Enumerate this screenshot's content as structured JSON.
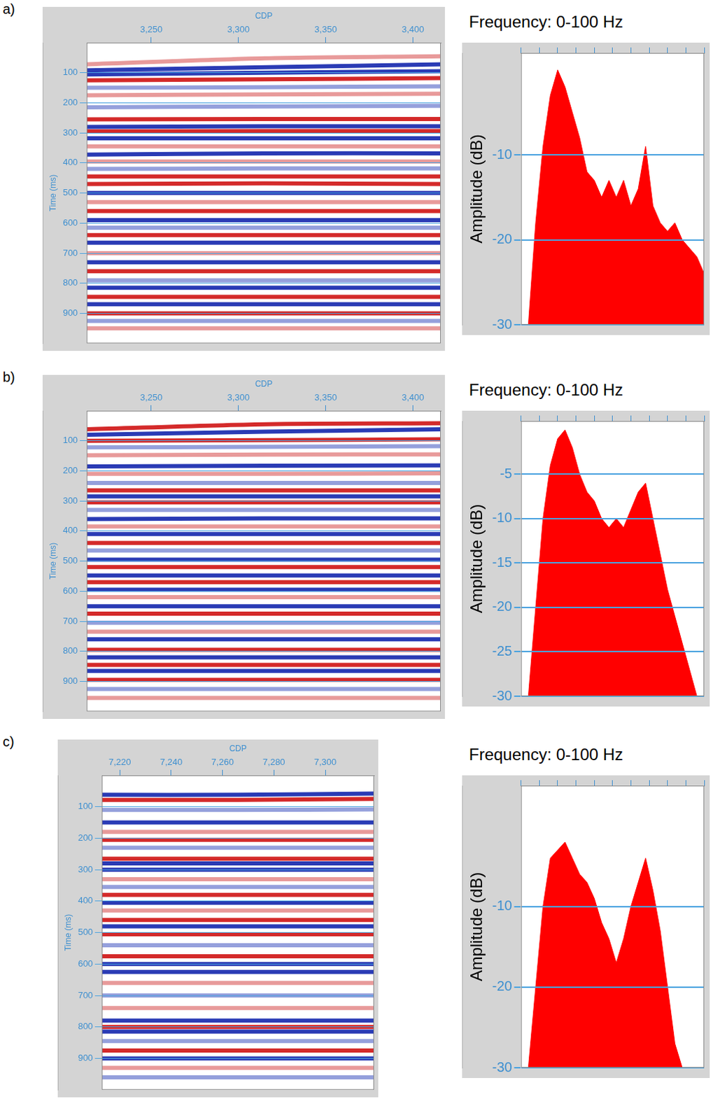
{
  "chart_data": [
    {
      "panel": "a)",
      "type": "line",
      "x_label": "CDP",
      "y_label": "Time (ms)",
      "grid": "y",
      "xlim": [
        3213,
        3416
      ],
      "xticks": [
        3250,
        3300,
        3350,
        3400
      ],
      "ylim": [
        0,
        1000
      ],
      "yticks": [
        100,
        200,
        300,
        400,
        500,
        600,
        700,
        800,
        900
      ],
      "x": [
        3213,
        3315,
        3416
      ],
      "series": [
        {
          "color": "#e89a9a",
          "values": [
            72,
            52,
            45
          ]
        },
        {
          "color": "#2a3bb5",
          "values": [
            92,
            82,
            72
          ]
        },
        {
          "color": "#2a3bb5",
          "values": [
            106,
            100,
            95
          ]
        },
        {
          "color": "#d42a2a",
          "values": [
            125,
            122,
            118
          ]
        },
        {
          "color": "#95a0dc",
          "values": [
            150,
            148,
            145
          ]
        },
        {
          "color": "#e89a9a",
          "values": [
            175,
            172,
            170
          ]
        },
        {
          "color": "#95a0dc",
          "values": [
            215,
            212,
            210
          ]
        },
        {
          "color": "#d42a2a",
          "values": [
            255,
            254,
            254
          ]
        },
        {
          "color": "#2a3bb5",
          "values": [
            280,
            278,
            278
          ]
        },
        {
          "color": "#d42a2a",
          "values": [
            295,
            294,
            294
          ]
        },
        {
          "color": "#2a3bb5",
          "values": [
            318,
            318,
            318
          ]
        },
        {
          "color": "#e89a9a",
          "values": [
            345,
            345,
            345
          ]
        },
        {
          "color": "#2a3bb5",
          "values": [
            372,
            368,
            368
          ]
        },
        {
          "color": "#e89a9a",
          "values": [
            395,
            395,
            395
          ]
        },
        {
          "color": "#95a0dc",
          "values": [
            420,
            418,
            418
          ]
        },
        {
          "color": "#d42a2a",
          "values": [
            445,
            445,
            445
          ]
        },
        {
          "color": "#d42a2a",
          "values": [
            470,
            468,
            470
          ]
        },
        {
          "color": "#2a3bb5",
          "values": [
            500,
            500,
            500
          ]
        },
        {
          "color": "#e89a9a",
          "values": [
            530,
            530,
            530
          ]
        },
        {
          "color": "#d42a2a",
          "values": [
            560,
            560,
            560
          ]
        },
        {
          "color": "#2a3bb5",
          "values": [
            590,
            590,
            590
          ]
        },
        {
          "color": "#95a0dc",
          "values": [
            615,
            615,
            615
          ]
        },
        {
          "color": "#d42a2a",
          "values": [
            640,
            640,
            640
          ]
        },
        {
          "color": "#2a3bb5",
          "values": [
            665,
            665,
            665
          ]
        },
        {
          "color": "#e89a9a",
          "values": [
            700,
            700,
            700
          ]
        },
        {
          "color": "#2a3bb5",
          "values": [
            730,
            730,
            730
          ]
        },
        {
          "color": "#d42a2a",
          "values": [
            760,
            760,
            760
          ]
        },
        {
          "color": "#95a0dc",
          "values": [
            790,
            790,
            790
          ]
        },
        {
          "color": "#2a3bb5",
          "values": [
            815,
            815,
            815
          ]
        },
        {
          "color": "#d42a2a",
          "values": [
            845,
            845,
            845
          ]
        },
        {
          "color": "#2a3bb5",
          "values": [
            870,
            870,
            870
          ]
        },
        {
          "color": "#d42a2a",
          "values": [
            900,
            900,
            900
          ]
        },
        {
          "color": "#95a0dc",
          "values": [
            925,
            925,
            925
          ]
        },
        {
          "color": "#e89a9a",
          "values": [
            950,
            950,
            950
          ]
        }
      ]
    },
    {
      "type": "area",
      "title": "Frequency: 0-100 Hz",
      "y_label": "Amplitude (dB)",
      "grid": "y",
      "tick_labels": "y",
      "color": "#ff0000",
      "xlim": [
        0,
        100
      ],
      "xticks": [
        0,
        10,
        20,
        30,
        40,
        50,
        60,
        70,
        80,
        90,
        100
      ],
      "ylim": [
        -30,
        2
      ],
      "yticks": [
        -10,
        -20,
        -30
      ],
      "x": [
        4,
        8,
        12,
        16,
        20,
        24,
        28,
        32,
        36,
        40,
        44,
        48,
        52,
        56,
        60,
        64,
        68,
        72,
        76,
        80,
        84,
        88,
        92,
        96,
        100
      ],
      "values": [
        -30,
        -18,
        -9,
        -3,
        0,
        -2,
        -5,
        -8,
        -12,
        -13,
        -15,
        -13,
        -15,
        -13,
        -16,
        -14,
        -9,
        -16,
        -18,
        -19,
        -18,
        -20,
        -21,
        -22,
        -24
      ]
    },
    {
      "panel": "b)",
      "type": "line",
      "x_label": "CDP",
      "y_label": "Time (ms)",
      "grid": "y",
      "xlim": [
        3213,
        3416
      ],
      "xticks": [
        3250,
        3300,
        3350,
        3400
      ],
      "ylim": [
        0,
        1000
      ],
      "yticks": [
        100,
        200,
        300,
        400,
        500,
        600,
        700,
        800,
        900
      ],
      "x": [
        3213,
        3315,
        3416
      ],
      "series": [
        {
          "color": "#d42a2a",
          "values": [
            62,
            45,
            42
          ]
        },
        {
          "color": "#2a3bb5",
          "values": [
            80,
            70,
            62
          ]
        },
        {
          "color": "#d42a2a",
          "values": [
            100,
            98,
            95
          ]
        },
        {
          "color": "#95a0dc",
          "values": [
            122,
            120,
            118
          ]
        },
        {
          "color": "#e89a9a",
          "values": [
            148,
            146,
            145
          ]
        },
        {
          "color": "#2a3bb5",
          "values": [
            185,
            183,
            182
          ]
        },
        {
          "color": "#e89a9a",
          "values": [
            210,
            210,
            208
          ]
        },
        {
          "color": "#95a0dc",
          "values": [
            240,
            240,
            240
          ]
        },
        {
          "color": "#d42a2a",
          "values": [
            265,
            265,
            265
          ]
        },
        {
          "color": "#2a3bb5",
          "values": [
            285,
            285,
            285
          ]
        },
        {
          "color": "#d42a2a",
          "values": [
            305,
            305,
            305
          ]
        },
        {
          "color": "#95a0dc",
          "values": [
            330,
            330,
            330
          ]
        },
        {
          "color": "#2a3bb5",
          "values": [
            360,
            358,
            358
          ]
        },
        {
          "color": "#e89a9a",
          "values": [
            385,
            385,
            385
          ]
        },
        {
          "color": "#2a3bb5",
          "values": [
            410,
            410,
            410
          ]
        },
        {
          "color": "#d42a2a",
          "values": [
            440,
            440,
            440
          ]
        },
        {
          "color": "#95a0dc",
          "values": [
            465,
            465,
            465
          ]
        },
        {
          "color": "#2a3bb5",
          "values": [
            495,
            495,
            495
          ]
        },
        {
          "color": "#d42a2a",
          "values": [
            520,
            520,
            520
          ]
        },
        {
          "color": "#2a3bb5",
          "values": [
            548,
            548,
            548
          ]
        },
        {
          "color": "#d42a2a",
          "values": [
            570,
            570,
            570
          ]
        },
        {
          "color": "#2a3bb5",
          "values": [
            595,
            595,
            595
          ]
        },
        {
          "color": "#e89a9a",
          "values": [
            620,
            620,
            620
          ]
        },
        {
          "color": "#2a3bb5",
          "values": [
            650,
            650,
            650
          ]
        },
        {
          "color": "#d42a2a",
          "values": [
            675,
            675,
            675
          ]
        },
        {
          "color": "#95a0dc",
          "values": [
            705,
            705,
            705
          ]
        },
        {
          "color": "#e89a9a",
          "values": [
            735,
            735,
            735
          ]
        },
        {
          "color": "#2a3bb5",
          "values": [
            760,
            760,
            760
          ]
        },
        {
          "color": "#d42a2a",
          "values": [
            795,
            795,
            795
          ]
        },
        {
          "color": "#2a3bb5",
          "values": [
            820,
            820,
            820
          ]
        },
        {
          "color": "#d42a2a",
          "values": [
            845,
            845,
            845
          ]
        },
        {
          "color": "#2a3bb5",
          "values": [
            865,
            865,
            865
          ]
        },
        {
          "color": "#d42a2a",
          "values": [
            895,
            895,
            895
          ]
        },
        {
          "color": "#95a0dc",
          "values": [
            925,
            925,
            925
          ]
        },
        {
          "color": "#e89a9a",
          "values": [
            955,
            955,
            955
          ]
        }
      ]
    },
    {
      "type": "area",
      "title": "Frequency: 0-100 Hz",
      "y_label": "Amplitude (dB)",
      "grid": "y",
      "tick_labels": "y",
      "color": "#ff0000",
      "xlim": [
        0,
        100
      ],
      "xticks": [
        0,
        10,
        20,
        30,
        40,
        50,
        60,
        70,
        80,
        90,
        100
      ],
      "ylim": [
        -30,
        1
      ],
      "yticks": [
        -5,
        -10,
        -15,
        -20,
        -25,
        -30
      ],
      "x": [
        4,
        8,
        12,
        16,
        20,
        24,
        28,
        32,
        36,
        40,
        44,
        48,
        52,
        56,
        60,
        64,
        68,
        72,
        76,
        80,
        84,
        88,
        92,
        96,
        100
      ],
      "values": [
        -30,
        -20,
        -10,
        -4,
        -1,
        0,
        -2,
        -5,
        -7,
        -8,
        -10,
        -11,
        -10,
        -11,
        -9,
        -7,
        -6,
        -10,
        -14,
        -18,
        -21,
        -24,
        -27,
        -30,
        -30
      ]
    },
    {
      "panel": "c)",
      "type": "line",
      "x_label": "CDP",
      "y_label": "Time (ms)",
      "grid": "y",
      "xlim": [
        7213,
        7319
      ],
      "xticks": [
        7220,
        7240,
        7260,
        7280,
        7300
      ],
      "ylim": [
        0,
        1000
      ],
      "yticks": [
        100,
        200,
        300,
        400,
        500,
        600,
        700,
        800,
        900
      ],
      "x": [
        7213,
        7266,
        7319
      ],
      "series": [
        {
          "color": "#2a3bb5",
          "values": [
            62,
            62,
            58
          ]
        },
        {
          "color": "#d42a2a",
          "values": [
            78,
            78,
            75
          ]
        },
        {
          "color": "#95a0dc",
          "values": [
            110,
            110,
            108
          ]
        },
        {
          "color": "#2a3bb5",
          "values": [
            150,
            150,
            150
          ]
        },
        {
          "color": "#e89a9a",
          "values": [
            180,
            180,
            180
          ]
        },
        {
          "color": "#d42a2a",
          "values": [
            205,
            205,
            205
          ]
        },
        {
          "color": "#95a0dc",
          "values": [
            230,
            230,
            230
          ]
        },
        {
          "color": "#d42a2a",
          "values": [
            265,
            265,
            265
          ]
        },
        {
          "color": "#2a3bb5",
          "values": [
            280,
            280,
            280
          ]
        },
        {
          "color": "#2a3bb5",
          "values": [
            300,
            300,
            300
          ]
        },
        {
          "color": "#e89a9a",
          "values": [
            330,
            330,
            330
          ]
        },
        {
          "color": "#95a0dc",
          "values": [
            355,
            355,
            355
          ]
        },
        {
          "color": "#d42a2a",
          "values": [
            380,
            380,
            380
          ]
        },
        {
          "color": "#2a3bb5",
          "values": [
            405,
            405,
            405
          ]
        },
        {
          "color": "#e89a9a",
          "values": [
            430,
            430,
            430
          ]
        },
        {
          "color": "#d42a2a",
          "values": [
            460,
            460,
            460
          ]
        },
        {
          "color": "#2a3bb5",
          "values": [
            480,
            480,
            480
          ]
        },
        {
          "color": "#d42a2a",
          "values": [
            505,
            505,
            505
          ]
        },
        {
          "color": "#95a0dc",
          "values": [
            540,
            540,
            540
          ]
        },
        {
          "color": "#d42a2a",
          "values": [
            575,
            575,
            575
          ]
        },
        {
          "color": "#2a3bb5",
          "values": [
            600,
            600,
            600
          ]
        },
        {
          "color": "#2a3bb5",
          "values": [
            625,
            625,
            625
          ]
        },
        {
          "color": "#e89a9a",
          "values": [
            660,
            660,
            660
          ]
        },
        {
          "color": "#95a0dc",
          "values": [
            700,
            700,
            700
          ]
        },
        {
          "color": "#e89a9a",
          "values": [
            740,
            740,
            740
          ]
        },
        {
          "color": "#2a3bb5",
          "values": [
            780,
            780,
            780
          ]
        },
        {
          "color": "#d42a2a",
          "values": [
            800,
            800,
            800
          ]
        },
        {
          "color": "#2a3bb5",
          "values": [
            815,
            815,
            815
          ]
        },
        {
          "color": "#95a0dc",
          "values": [
            845,
            845,
            845
          ]
        },
        {
          "color": "#d42a2a",
          "values": [
            875,
            875,
            875
          ]
        },
        {
          "color": "#2a3bb5",
          "values": [
            900,
            900,
            900
          ]
        },
        {
          "color": "#e89a9a",
          "values": [
            930,
            930,
            930
          ]
        },
        {
          "color": "#95a0dc",
          "values": [
            960,
            960,
            960
          ]
        }
      ]
    },
    {
      "type": "area",
      "title": "Frequency: 0-100 Hz",
      "y_label": "Amplitude (dB)",
      "grid": "y",
      "tick_labels": "y",
      "color": "#ff0000",
      "xlim": [
        0,
        100
      ],
      "xticks": [
        0,
        10,
        20,
        30,
        40,
        50,
        60,
        70,
        80,
        90,
        100
      ],
      "ylim": [
        -30,
        5
      ],
      "yticks": [
        -10,
        -20,
        -30
      ],
      "x": [
        4,
        8,
        12,
        16,
        20,
        24,
        28,
        32,
        36,
        40,
        44,
        48,
        52,
        56,
        60,
        64,
        68,
        72,
        76,
        80,
        84,
        88,
        92,
        96,
        100
      ],
      "values": [
        -30,
        -20,
        -10,
        -4,
        -3,
        -2,
        -4,
        -6,
        -7,
        -9,
        -12,
        -14,
        -17,
        -14,
        -10,
        -7,
        -4,
        -8,
        -13,
        -20,
        -27,
        -30,
        -30,
        -30,
        -30
      ]
    }
  ]
}
